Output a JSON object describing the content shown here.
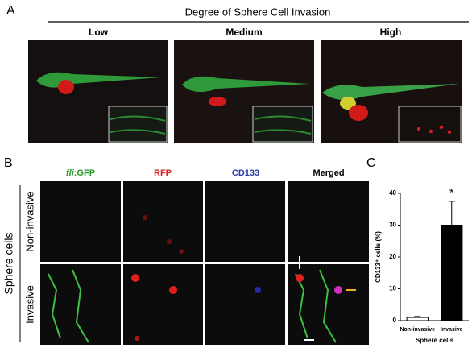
{
  "panel_a": {
    "letter": "A",
    "title": "Degree of Sphere Cell Invasion",
    "labels": [
      "Low",
      "Medium",
      "High"
    ]
  },
  "panel_b": {
    "letter": "B",
    "columns": [
      {
        "italic": "fli",
        "text": ":GFP"
      },
      {
        "text": "RFP"
      },
      {
        "text": "CD133"
      },
      {
        "text": "Merged"
      }
    ],
    "group": "Sphere cells",
    "rows": [
      "Non-invasive",
      "Invasive"
    ]
  },
  "panel_c": {
    "letter": "C"
  },
  "chart_data": {
    "type": "bar",
    "y_label": "CD133⁺ cells (%)",
    "x_label": "Sphere cells",
    "annotation": "*",
    "categories": [
      "Non-invasive",
      "Invasive"
    ],
    "values": [
      1,
      30
    ],
    "errors": [
      0.3,
      7.5
    ],
    "colors": [
      "#ffffff",
      "#000000"
    ],
    "ylim": [
      0,
      40
    ],
    "yticks": [
      0,
      10,
      20,
      30,
      40
    ]
  }
}
